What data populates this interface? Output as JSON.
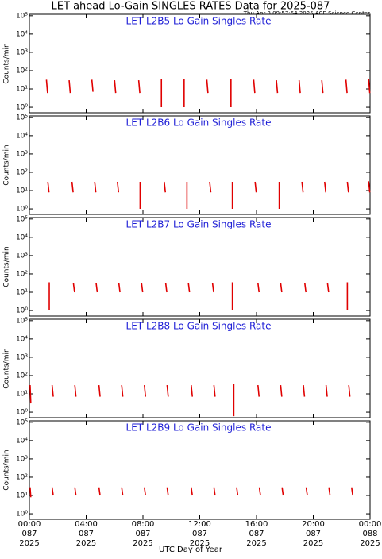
{
  "title": "LET ahead Lo-Gain SINGLES RATES Data for 2025-087",
  "subtitle": "Thu Apr  3 09:57:54 2025 ACE Science Center",
  "x_axis": {
    "label": "UTC Day of Year",
    "xlim": [
      0,
      24
    ],
    "xticks": [
      {
        "value": 0,
        "label": [
          "00:00",
          "087",
          "2025"
        ]
      },
      {
        "value": 4,
        "label": [
          "04:00",
          "087",
          "2025"
        ]
      },
      {
        "value": 8,
        "label": [
          "08:00",
          "087",
          "2025"
        ]
      },
      {
        "value": 12,
        "label": [
          "12:00",
          "087",
          "2025"
        ]
      },
      {
        "value": 16,
        "label": [
          "16:00",
          "087",
          "2025"
        ]
      },
      {
        "value": 20,
        "label": [
          "20:00",
          "087",
          "2025"
        ]
      },
      {
        "value": 24,
        "label": [
          "00:00",
          "088",
          "2025"
        ]
      }
    ]
  },
  "chart_data": [
    {
      "type": "line",
      "title": "LET L2B5 Lo Gain Singles Rate",
      "ylabel": "Counts/min",
      "log_y": true,
      "color": "#e00000",
      "ylim": [
        0.5,
        120000
      ],
      "yticks": [
        {
          "value": 1,
          "label": "10⁰"
        },
        {
          "value": 10,
          "label": "10¹"
        },
        {
          "value": 100,
          "label": "10²"
        },
        {
          "value": 1000,
          "label": "10³"
        },
        {
          "value": 10000,
          "label": "10⁴"
        },
        {
          "value": 100000,
          "label": "10⁵"
        }
      ],
      "x": [
        1.2,
        1.28,
        null,
        2.8,
        2.88,
        null,
        4.4,
        4.48,
        null,
        6.0,
        6.08,
        null,
        7.7,
        7.78,
        null,
        9.3,
        9.3,
        null,
        10.9,
        10.9,
        null,
        12.5,
        12.58,
        null,
        14.2,
        14.2,
        null,
        15.8,
        15.88,
        null,
        17.4,
        17.48,
        null,
        19.0,
        19.08,
        null,
        20.6,
        20.68,
        null,
        22.3,
        22.38,
        null,
        23.9,
        23.98
      ],
      "values": [
        32,
        6,
        null,
        30,
        6,
        null,
        32,
        7,
        null,
        30,
        6,
        null,
        30,
        6,
        null,
        35,
        1,
        null,
        35,
        1,
        null,
        32,
        6,
        null,
        35,
        1,
        null,
        32,
        6,
        null,
        30,
        6,
        null,
        30,
        6,
        null,
        30,
        6,
        null,
        32,
        6,
        null,
        35,
        6
      ]
    },
    {
      "type": "line",
      "title": "LET L2B6 Lo Gain Singles Rate",
      "ylabel": "Counts/min",
      "log_y": true,
      "color": "#e00000",
      "ylim": [
        0.5,
        120000
      ],
      "yticks": [
        {
          "value": 1,
          "label": "10⁰"
        },
        {
          "value": 10,
          "label": "10¹"
        },
        {
          "value": 100,
          "label": "10²"
        },
        {
          "value": 1000,
          "label": "10³"
        },
        {
          "value": 10000,
          "label": "10⁴"
        },
        {
          "value": 100000,
          "label": "10⁵"
        }
      ],
      "x": [
        1.3,
        1.38,
        null,
        3.0,
        3.08,
        null,
        4.6,
        4.68,
        null,
        6.2,
        6.28,
        null,
        7.8,
        7.8,
        null,
        9.5,
        9.58,
        null,
        11.1,
        11.1,
        null,
        12.7,
        12.78,
        null,
        14.3,
        14.3,
        null,
        15.9,
        15.98,
        null,
        17.6,
        17.6,
        null,
        19.2,
        19.28,
        null,
        20.8,
        20.88,
        null,
        22.4,
        22.48,
        null,
        23.9,
        23.98
      ],
      "values": [
        30,
        8,
        null,
        30,
        8,
        null,
        30,
        8,
        null,
        30,
        8,
        null,
        30,
        1,
        null,
        30,
        8,
        null,
        30,
        1,
        null,
        30,
        8,
        null,
        30,
        1,
        null,
        30,
        8,
        null,
        30,
        1,
        null,
        30,
        8,
        null,
        30,
        8,
        null,
        30,
        8,
        null,
        32,
        8
      ]
    },
    {
      "type": "line",
      "title": "LET L2B7 Lo Gain Singles Rate",
      "ylabel": "Counts/min",
      "log_y": true,
      "color": "#e00000",
      "ylim": [
        0.5,
        120000
      ],
      "yticks": [
        {
          "value": 1,
          "label": "10⁰"
        },
        {
          "value": 10,
          "label": "10¹"
        },
        {
          "value": 100,
          "label": "10²"
        },
        {
          "value": 1000,
          "label": "10³"
        },
        {
          "value": 10000,
          "label": "10⁴"
        },
        {
          "value": 100000,
          "label": "10⁵"
        }
      ],
      "x": [
        1.4,
        1.4,
        null,
        3.1,
        3.18,
        null,
        4.7,
        4.78,
        null,
        6.3,
        6.38,
        null,
        7.9,
        7.98,
        null,
        9.6,
        9.68,
        null,
        11.2,
        11.28,
        null,
        12.9,
        12.98,
        null,
        14.3,
        14.3,
        null,
        16.1,
        16.18,
        null,
        17.7,
        17.78,
        null,
        19.4,
        19.48,
        null,
        21.0,
        21.08,
        null,
        22.4,
        22.4
      ],
      "values": [
        35,
        1,
        null,
        32,
        10,
        null,
        32,
        10,
        null,
        32,
        10,
        null,
        32,
        10,
        null,
        32,
        10,
        null,
        32,
        10,
        null,
        32,
        10,
        null,
        35,
        1,
        null,
        32,
        10,
        null,
        32,
        10,
        null,
        32,
        10,
        null,
        32,
        10,
        null,
        35,
        1
      ]
    },
    {
      "type": "line",
      "title": "LET L2B8 Lo Gain Singles Rate",
      "ylabel": "Counts/min",
      "log_y": true,
      "color": "#e00000",
      "ylim": [
        0.5,
        120000
      ],
      "yticks": [
        {
          "value": 1,
          "label": "10⁰"
        },
        {
          "value": 10,
          "label": "10¹"
        },
        {
          "value": 100,
          "label": "10²"
        },
        {
          "value": 1000,
          "label": "10³"
        },
        {
          "value": 10000,
          "label": "10⁴"
        },
        {
          "value": 100000,
          "label": "10⁵"
        }
      ],
      "x": [
        0.05,
        0.1,
        null,
        1.6,
        1.68,
        null,
        3.2,
        3.28,
        null,
        4.9,
        4.98,
        null,
        6.5,
        6.58,
        null,
        8.1,
        8.18,
        null,
        9.7,
        9.78,
        null,
        11.4,
        11.48,
        null,
        13.0,
        13.08,
        null,
        14.4,
        14.4,
        null,
        16.1,
        16.18,
        null,
        17.7,
        17.78,
        null,
        19.3,
        19.38,
        null,
        20.9,
        20.98,
        null,
        22.5,
        22.58
      ],
      "values": [
        30,
        3,
        null,
        30,
        7,
        null,
        30,
        7,
        null,
        30,
        7,
        null,
        30,
        7,
        null,
        30,
        7,
        null,
        30,
        7,
        null,
        30,
        7,
        null,
        30,
        7,
        null,
        35,
        0.6,
        null,
        30,
        7,
        null,
        30,
        7,
        null,
        30,
        7,
        null,
        30,
        7,
        null,
        30,
        7
      ]
    },
    {
      "type": "line",
      "title": "LET L2B9 Lo Gain Singles Rate",
      "ylabel": "Counts/min",
      "log_y": true,
      "color": "#e00000",
      "ylim": [
        0.5,
        120000
      ],
      "yticks": [
        {
          "value": 1,
          "label": "10⁰"
        },
        {
          "value": 10,
          "label": "10¹"
        },
        {
          "value": 100,
          "label": "10²"
        },
        {
          "value": 1000,
          "label": "10³"
        },
        {
          "value": 10000,
          "label": "10⁴"
        },
        {
          "value": 100000,
          "label": "10⁵"
        }
      ],
      "x": [
        0.05,
        0.1,
        null,
        1.6,
        1.68,
        null,
        3.2,
        3.28,
        null,
        4.9,
        4.98,
        null,
        6.5,
        6.58,
        null,
        8.1,
        8.18,
        null,
        9.7,
        9.78,
        null,
        11.4,
        11.48,
        null,
        13.0,
        13.08,
        null,
        14.6,
        14.68,
        null,
        16.2,
        16.28,
        null,
        17.8,
        17.88,
        null,
        19.5,
        19.58,
        null,
        21.1,
        21.18,
        null,
        22.7,
        22.78
      ],
      "values": [
        28,
        8,
        null,
        28,
        10,
        null,
        28,
        10,
        null,
        28,
        10,
        null,
        28,
        10,
        null,
        28,
        10,
        null,
        28,
        10,
        null,
        28,
        10,
        null,
        28,
        10,
        null,
        28,
        10,
        null,
        28,
        10,
        null,
        28,
        10,
        null,
        28,
        10,
        null,
        28,
        10,
        null,
        28,
        10
      ]
    }
  ]
}
